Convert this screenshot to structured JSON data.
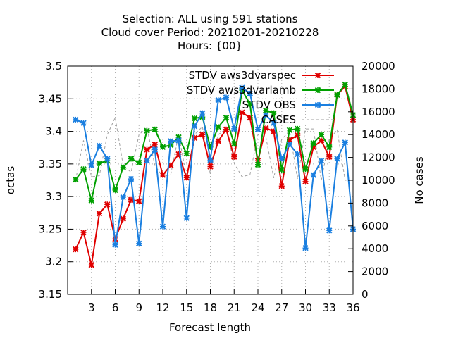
{
  "chart_data": {
    "type": "line",
    "title_lines": [
      "Selection: ALL using   591 stations",
      "Cloud cover   Period: 20210201-20210228",
      "Hours: {00}"
    ],
    "xlabel": "Forecast length",
    "ylabel": "octas",
    "y2label": "No cases",
    "xlim": [
      0,
      36
    ],
    "ylim": [
      3.15,
      3.5
    ],
    "y2lim": [
      0,
      20000
    ],
    "xticks": [
      3,
      6,
      9,
      12,
      15,
      18,
      21,
      24,
      27,
      30,
      33,
      36
    ],
    "yticks": [
      3.15,
      3.2,
      3.25,
      3.3,
      3.35,
      3.4,
      3.45,
      3.5
    ],
    "y2ticks": [
      0,
      2000,
      4000,
      6000,
      8000,
      10000,
      12000,
      14000,
      16000,
      18000,
      20000
    ],
    "grid": true,
    "legend_position": "top-right",
    "x": [
      1,
      2,
      3,
      4,
      5,
      6,
      7,
      8,
      9,
      10,
      11,
      12,
      13,
      14,
      15,
      16,
      17,
      18,
      19,
      20,
      21,
      22,
      23,
      24,
      25,
      26,
      27,
      28,
      29,
      30,
      31,
      32,
      33,
      34,
      35,
      36
    ],
    "series": [
      {
        "name": "STDV aws3dvarspec",
        "color": "#e00000",
        "axis": "left",
        "values": [
          3.219,
          3.245,
          3.195,
          3.274,
          3.288,
          3.235,
          3.266,
          3.295,
          3.293,
          3.372,
          3.38,
          3.333,
          3.348,
          3.365,
          3.329,
          3.39,
          3.395,
          3.346,
          3.385,
          3.403,
          3.361,
          3.429,
          3.421,
          3.355,
          3.405,
          3.4,
          3.316,
          3.387,
          3.394,
          3.323,
          3.376,
          3.386,
          3.361,
          3.456,
          3.469,
          3.418
        ]
      },
      {
        "name": "STDV aws3dvarlamb",
        "color": "#00a000",
        "axis": "left",
        "values": [
          3.326,
          3.342,
          3.294,
          3.351,
          3.355,
          3.31,
          3.345,
          3.358,
          3.352,
          3.401,
          3.403,
          3.376,
          3.379,
          3.391,
          3.366,
          3.42,
          3.422,
          3.376,
          3.407,
          3.421,
          3.381,
          3.463,
          3.442,
          3.349,
          3.432,
          3.428,
          3.341,
          3.402,
          3.404,
          3.342,
          3.382,
          3.395,
          3.376,
          3.456,
          3.472,
          3.425
        ]
      },
      {
        "name": "STDV OBS",
        "color": "#1a7fe0",
        "axis": "left",
        "values": [
          3.418,
          3.413,
          3.348,
          3.378,
          3.358,
          3.226,
          3.299,
          3.327,
          3.228,
          3.355,
          3.372,
          3.254,
          3.385,
          3.386,
          3.267,
          3.408,
          3.428,
          3.356,
          3.448,
          3.452,
          3.404,
          3.467,
          3.458,
          3.403,
          3.425,
          3.413,
          3.358,
          3.38,
          3.365,
          3.221,
          3.333,
          3.355,
          3.248,
          3.358,
          3.383,
          3.25
        ]
      },
      {
        "name": "CASES",
        "color": "#a0a0a0",
        "axis": "right",
        "dashed": true,
        "values": [
          10000,
          13500,
          10300,
          10400,
          14000,
          15500,
          11300,
          10700,
          14000,
          14600,
          11300,
          10300,
          10500,
          14000,
          10300,
          14000,
          14700,
          10500,
          14000,
          14500,
          11500,
          10300,
          10500,
          14000,
          13800,
          10200,
          13600,
          14300,
          10100,
          14500,
          14500,
          10000,
          13600,
          14400,
          10000,
          10000
        ]
      }
    ]
  }
}
